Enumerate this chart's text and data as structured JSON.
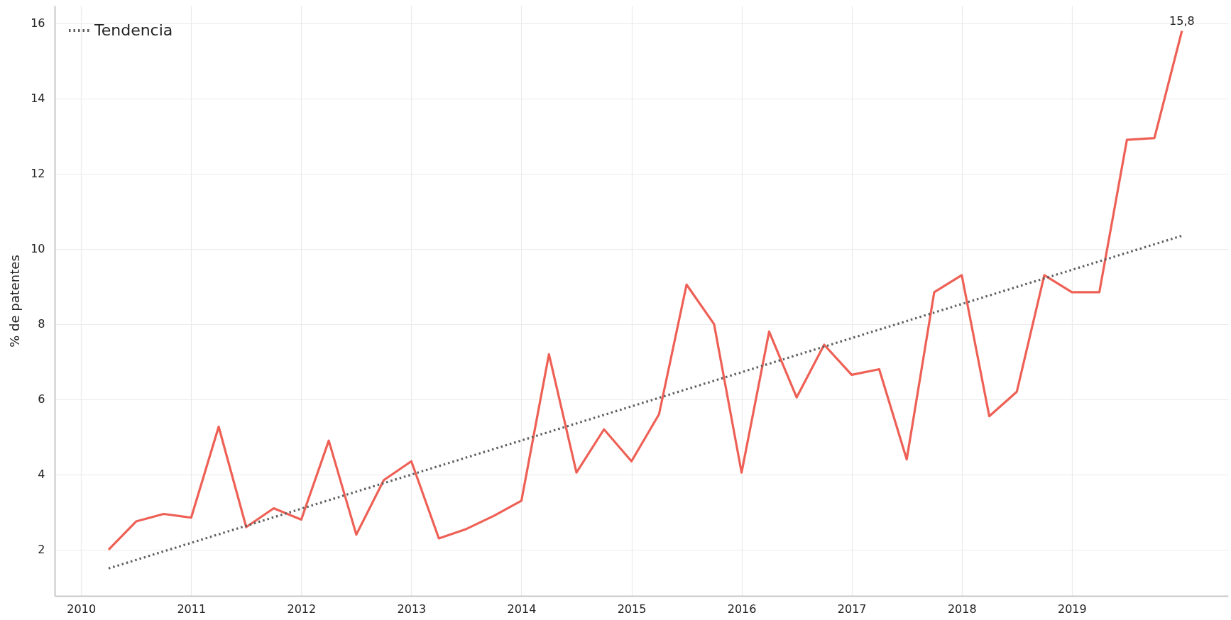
{
  "chart_data": {
    "type": "line",
    "ylabel": "% de patentes",
    "xlim": [
      2009.76,
      2020.42
    ],
    "ylim": [
      0.77,
      16.47
    ],
    "xticks": [
      2010,
      2011,
      2012,
      2013,
      2014,
      2015,
      2016,
      2017,
      2018,
      2019
    ],
    "yticks": [
      2,
      4,
      6,
      8,
      10,
      12,
      14,
      16
    ],
    "grid": true,
    "legend": "top left",
    "marker": "none",
    "series": [
      {
        "color": "#ee6055",
        "line_style": "solid",
        "x": [
          2010.25,
          2010.5,
          2010.75,
          2011,
          2011.25,
          2011.5,
          2011.75,
          2012,
          2012.25,
          2012.5,
          2012.75,
          2013,
          2013.25,
          2013.5,
          2013.75,
          2014,
          2014.25,
          2014.5,
          2014.75,
          2015,
          2015.25,
          2015.5,
          2015.75,
          2016,
          2016.25,
          2016.5,
          2016.75,
          2017,
          2017.25,
          2017.5,
          2017.75,
          2018,
          2018.25,
          2018.5,
          2018.75,
          2019,
          2019.25,
          2019.5,
          2019.75,
          2020
        ],
        "values": [
          2.0,
          2.75,
          2.95,
          2.85,
          5.27,
          2.6,
          3.1,
          2.8,
          4.9,
          2.4,
          3.85,
          4.35,
          2.3,
          2.55,
          2.9,
          3.3,
          7.2,
          4.05,
          5.2,
          4.35,
          5.6,
          9.05,
          8.0,
          4.05,
          7.8,
          6.05,
          7.45,
          6.65,
          6.8,
          4.4,
          8.85,
          9.3,
          5.55,
          6.2,
          9.3,
          8.85,
          8.85,
          12.9,
          12.95,
          15.8
        ],
        "value_labels": [
          null,
          null,
          null,
          null,
          null,
          null,
          null,
          null,
          null,
          null,
          null,
          null,
          null,
          null,
          null,
          null,
          null,
          null,
          null,
          null,
          null,
          null,
          null,
          null,
          null,
          null,
          null,
          null,
          null,
          null,
          null,
          null,
          null,
          null,
          null,
          null,
          null,
          null,
          null,
          "15,8"
        ]
      },
      {
        "name": "Tendencia",
        "type": "line",
        "color": "#5f5f5f",
        "line_style": "dotted",
        "x": [
          2010.25,
          2020
        ],
        "values": [
          1.5,
          10.35
        ]
      }
    ]
  }
}
